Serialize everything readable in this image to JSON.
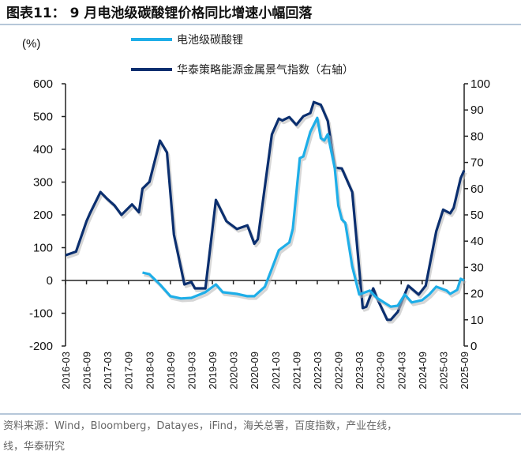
{
  "title": "图表11：  9 月电池级碳酸锂价格同比增速小幅回落",
  "source": "资料来源：Wind，Bloomberg，Datayes，iFind，海关总署，百度指数，产业在线，",
  "source_line2": "线，华泰研究",
  "colors": {
    "light": "#1eaee8",
    "dark": "#0b2f6f",
    "axis": "#222222",
    "rule": "#6d8fb3"
  },
  "chart_data": {
    "type": "line",
    "left_unit": "(%)",
    "ylim_left": [
      -200,
      600
    ],
    "yticks_left": [
      -200,
      -100,
      0,
      100,
      200,
      300,
      400,
      500,
      600
    ],
    "ylim_right": [
      0,
      100
    ],
    "yticks_right": [
      0,
      10,
      20,
      30,
      40,
      50,
      60,
      70,
      80,
      90,
      100
    ],
    "xticks": [
      "2016-03",
      "2016-09",
      "2017-03",
      "2017-09",
      "2018-03",
      "2018-09",
      "2019-03",
      "2019-09",
      "2020-03",
      "2020-09",
      "2021-03",
      "2021-09",
      "2022-03",
      "2022-09",
      "2023-03",
      "2023-09",
      "2024-03",
      "2024-09",
      "2025-03",
      "2025-09"
    ],
    "grid": false,
    "legend_position": "top",
    "series": [
      {
        "name": "电池级碳酸锂",
        "axis": "left",
        "color": "light",
        "points": [
          [
            "2018-01",
            24
          ],
          [
            "2018-03",
            19
          ],
          [
            "2018-06",
            -12
          ],
          [
            "2018-09",
            -48
          ],
          [
            "2018-12",
            -55
          ],
          [
            "2019-03",
            -53
          ],
          [
            "2019-07",
            -36
          ],
          [
            "2019-10",
            -12
          ],
          [
            "2019-12",
            -36
          ],
          [
            "2020-04",
            -41
          ],
          [
            "2020-07",
            -48
          ],
          [
            "2020-09",
            -48
          ],
          [
            "2020-12",
            -19
          ],
          [
            "2021-02",
            36
          ],
          [
            "2021-04",
            92
          ],
          [
            "2021-07",
            116
          ],
          [
            "2021-08",
            157
          ],
          [
            "2021-10",
            373
          ],
          [
            "2021-11",
            378
          ],
          [
            "2022-01",
            453
          ],
          [
            "2022-03",
            496
          ],
          [
            "2022-04",
            434
          ],
          [
            "2022-05",
            427
          ],
          [
            "2022-06",
            446
          ],
          [
            "2022-08",
            342
          ],
          [
            "2022-09",
            229
          ],
          [
            "2022-10",
            186
          ],
          [
            "2022-11",
            176
          ],
          [
            "2023-01",
            43
          ],
          [
            "2023-03",
            -43
          ],
          [
            "2023-06",
            -31
          ],
          [
            "2023-08",
            -53
          ],
          [
            "2023-12",
            -80
          ],
          [
            "2024-02",
            -77
          ],
          [
            "2024-04",
            -43
          ],
          [
            "2024-06",
            -67
          ],
          [
            "2024-09",
            -60
          ],
          [
            "2024-11",
            -43
          ],
          [
            "2025-01",
            -19
          ],
          [
            "2025-04",
            -31
          ],
          [
            "2025-05",
            -41
          ],
          [
            "2025-07",
            -29
          ],
          [
            "2025-08",
            5
          ],
          [
            "2025-09",
            0
          ]
        ]
      },
      {
        "name": "华泰策略能源金属景气指数（右轴）",
        "axis": "right",
        "color": "dark",
        "points": [
          [
            "2016-03",
            34.6
          ],
          [
            "2016-06",
            36
          ],
          [
            "2016-09",
            47.6
          ],
          [
            "2016-10",
            50.6
          ],
          [
            "2017-01",
            58.7
          ],
          [
            "2017-03",
            56
          ],
          [
            "2017-05",
            53.6
          ],
          [
            "2017-07",
            50
          ],
          [
            "2017-10",
            54
          ],
          [
            "2017-12",
            51
          ],
          [
            "2018-01",
            60
          ],
          [
            "2018-03",
            62.6
          ],
          [
            "2018-06",
            78.3
          ],
          [
            "2018-08",
            73.8
          ],
          [
            "2018-10",
            42.5
          ],
          [
            "2019-01",
            23.5
          ],
          [
            "2019-03",
            24.4
          ],
          [
            "2019-04",
            22
          ],
          [
            "2019-07",
            22
          ],
          [
            "2019-10",
            55.7
          ],
          [
            "2020-01",
            47.6
          ],
          [
            "2020-04",
            44.6
          ],
          [
            "2020-07",
            46
          ],
          [
            "2020-09",
            39
          ],
          [
            "2020-10",
            40.7
          ],
          [
            "2021-02",
            80.7
          ],
          [
            "2021-04",
            86.7
          ],
          [
            "2021-05",
            86
          ],
          [
            "2021-07",
            87.3
          ],
          [
            "2021-09",
            84.3
          ],
          [
            "2021-11",
            87.6
          ],
          [
            "2022-01",
            88.8
          ],
          [
            "2022-02",
            93
          ],
          [
            "2022-04",
            92
          ],
          [
            "2022-06",
            85.8
          ],
          [
            "2022-08",
            68
          ],
          [
            "2022-10",
            67.7
          ],
          [
            "2023-01",
            58.7
          ],
          [
            "2023-04",
            14.5
          ],
          [
            "2023-05",
            15
          ],
          [
            "2023-07",
            22
          ],
          [
            "2023-08",
            18.4
          ],
          [
            "2023-11",
            10
          ],
          [
            "2023-12",
            10
          ],
          [
            "2024-02",
            13
          ],
          [
            "2024-05",
            23
          ],
          [
            "2024-08",
            19.6
          ],
          [
            "2024-10",
            23
          ],
          [
            "2025-01",
            43.7
          ],
          [
            "2025-03",
            52
          ],
          [
            "2025-05",
            50.6
          ],
          [
            "2025-06",
            52.7
          ],
          [
            "2025-08",
            64
          ],
          [
            "2025-09",
            67
          ]
        ]
      }
    ]
  }
}
